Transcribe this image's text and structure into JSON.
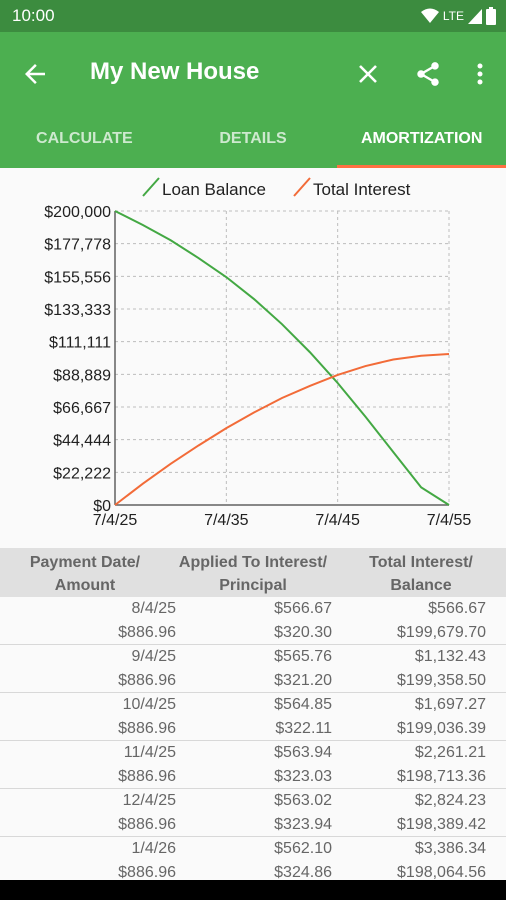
{
  "status": {
    "time": "10:00",
    "network": "LTE"
  },
  "app_bar": {
    "title": "My New House"
  },
  "tabs": [
    {
      "label": "CALCULATE",
      "active": false
    },
    {
      "label": "DETAILS",
      "active": false
    },
    {
      "label": "AMORTIZATION",
      "active": true
    }
  ],
  "colors": {
    "primary": "#4caf50",
    "accent": "#ff7043",
    "loan_balance": "#43a843",
    "total_interest": "#f26b38"
  },
  "chart_data": {
    "type": "line",
    "legend_placement": "top-center",
    "grid": true,
    "x_ticks": [
      "7/4/25",
      "7/4/35",
      "7/4/45",
      "7/4/55"
    ],
    "y_ticks": [
      "$0",
      "$22,222",
      "$44,444",
      "$66,667",
      "$88,889",
      "$111,111",
      "$133,333",
      "$155,556",
      "$177,778",
      "$200,000"
    ],
    "ylim": [
      0,
      200000
    ],
    "x": [
      2025,
      2027.5,
      2030,
      2032.5,
      2035,
      2037.5,
      2040,
      2042.5,
      2045,
      2047.5,
      2050,
      2052.5,
      2055
    ],
    "series": [
      {
        "name": "Loan Balance",
        "values": [
          200000,
          190500,
          180100,
          168000,
          155000,
          140000,
          123000,
          104000,
          83000,
          60000,
          36000,
          12000,
          0
        ]
      },
      {
        "name": "Total Interest",
        "values": [
          0,
          14500,
          28000,
          40500,
          52300,
          63000,
          72800,
          81000,
          88500,
          94500,
          99000,
          101500,
          102700
        ]
      }
    ]
  },
  "table": {
    "headers": [
      {
        "line1": "Payment Date/",
        "line2": "Amount"
      },
      {
        "line1": "Applied To Interest/",
        "line2": "Principal"
      },
      {
        "line1": "Total Interest/",
        "line2": "Balance"
      }
    ],
    "rows": [
      {
        "date": "8/4/25",
        "amount": "$886.96",
        "interest": "$566.67",
        "principal": "$320.30",
        "total_interest": "$566.67",
        "balance": "$199,679.70"
      },
      {
        "date": "9/4/25",
        "amount": "$886.96",
        "interest": "$565.76",
        "principal": "$321.20",
        "total_interest": "$1,132.43",
        "balance": "$199,358.50"
      },
      {
        "date": "10/4/25",
        "amount": "$886.96",
        "interest": "$564.85",
        "principal": "$322.11",
        "total_interest": "$1,697.27",
        "balance": "$199,036.39"
      },
      {
        "date": "11/4/25",
        "amount": "$886.96",
        "interest": "$563.94",
        "principal": "$323.03",
        "total_interest": "$2,261.21",
        "balance": "$198,713.36"
      },
      {
        "date": "12/4/25",
        "amount": "$886.96",
        "interest": "$563.02",
        "principal": "$323.94",
        "total_interest": "$2,824.23",
        "balance": "$198,389.42"
      },
      {
        "date": "1/4/26",
        "amount": "$886.96",
        "interest": "$562.10",
        "principal": "$324.86",
        "total_interest": "$3,386.34",
        "balance": "$198,064.56"
      }
    ]
  }
}
